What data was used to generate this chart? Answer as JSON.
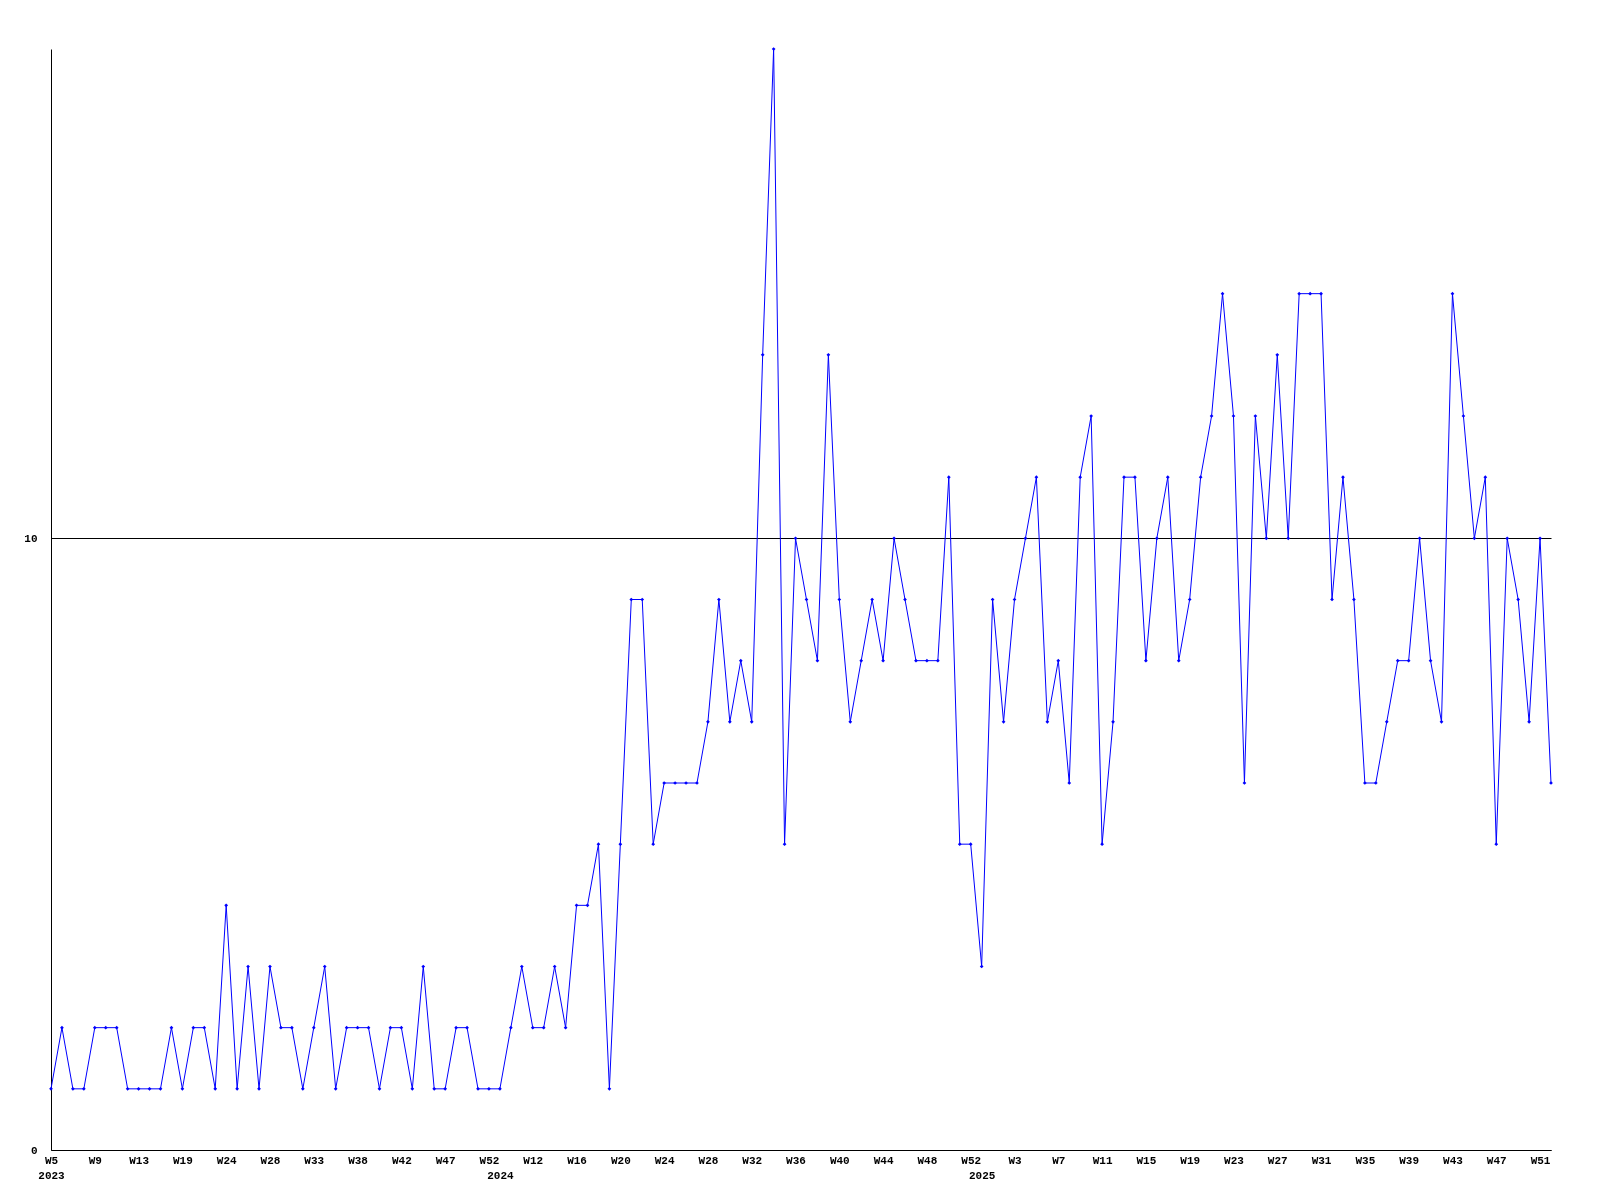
{
  "chart_data": {
    "type": "line",
    "categories": [
      "W5\n2023",
      null,
      null,
      null,
      "W9",
      null,
      null,
      null,
      "W13",
      null,
      null,
      null,
      "W19",
      null,
      null,
      null,
      "W24",
      null,
      null,
      null,
      "W28",
      null,
      null,
      null,
      "W33",
      null,
      null,
      null,
      "W38",
      null,
      null,
      null,
      "W42",
      null,
      null,
      null,
      "W47",
      null,
      null,
      null,
      "W52",
      "\n2024",
      null,
      null,
      "W12",
      null,
      null,
      null,
      "W16",
      null,
      null,
      null,
      "W20",
      null,
      null,
      null,
      "W24",
      null,
      null,
      null,
      "W28",
      null,
      null,
      null,
      "W32",
      null,
      null,
      null,
      "W36",
      null,
      null,
      null,
      "W40",
      null,
      null,
      null,
      "W44",
      null,
      null,
      null,
      "W48",
      null,
      null,
      null,
      "W52",
      "\n2025",
      null,
      null,
      "W3",
      null,
      null,
      null,
      "W7",
      null,
      null,
      null,
      "W11",
      null,
      null,
      null,
      "W15",
      null,
      null,
      null,
      "W19",
      null,
      null,
      null,
      "W23",
      null,
      null,
      null,
      "W27",
      null,
      null,
      null,
      "W31",
      null,
      null,
      null,
      "W35",
      null,
      null,
      null,
      "W39",
      null,
      null,
      null,
      "W43",
      null,
      null,
      null,
      "W47",
      null,
      null,
      null,
      "W51",
      null
    ],
    "series": [
      {
        "color": "#0000ff",
        "values": [
          1,
          2,
          1,
          1,
          2,
          2,
          2,
          1,
          1,
          1,
          1,
          2,
          1,
          2,
          2,
          1,
          4,
          1,
          3,
          1,
          3,
          2,
          2,
          1,
          2,
          3,
          1,
          2,
          2,
          2,
          1,
          2,
          2,
          1,
          3,
          1,
          1,
          2,
          2,
          1,
          1,
          1,
          2,
          3,
          2,
          2,
          3,
          2,
          4,
          4,
          5,
          1,
          5,
          9,
          9,
          5,
          6,
          6,
          6,
          6,
          7,
          9,
          7,
          8,
          7,
          13,
          18,
          5,
          10,
          9,
          8,
          13,
          9,
          7,
          8,
          9,
          8,
          10,
          9,
          8,
          8,
          8,
          11,
          5,
          5,
          3,
          9,
          7,
          9,
          10,
          11,
          7,
          8,
          6,
          11,
          12,
          5,
          7,
          11,
          11,
          8,
          10,
          11,
          8,
          9,
          11,
          12,
          14,
          12,
          6,
          12,
          10,
          13,
          10,
          14,
          14,
          14,
          9,
          11,
          9,
          6,
          6,
          7,
          8,
          8,
          10,
          8,
          7,
          14,
          12,
          10,
          11,
          5,
          10,
          9,
          7,
          10,
          6
        ]
      }
    ],
    "ylim": [
      0,
      18
    ],
    "yticks": [
      0,
      10
    ],
    "grid": "y",
    "marker": "diamond",
    "line_style": "solid"
  }
}
